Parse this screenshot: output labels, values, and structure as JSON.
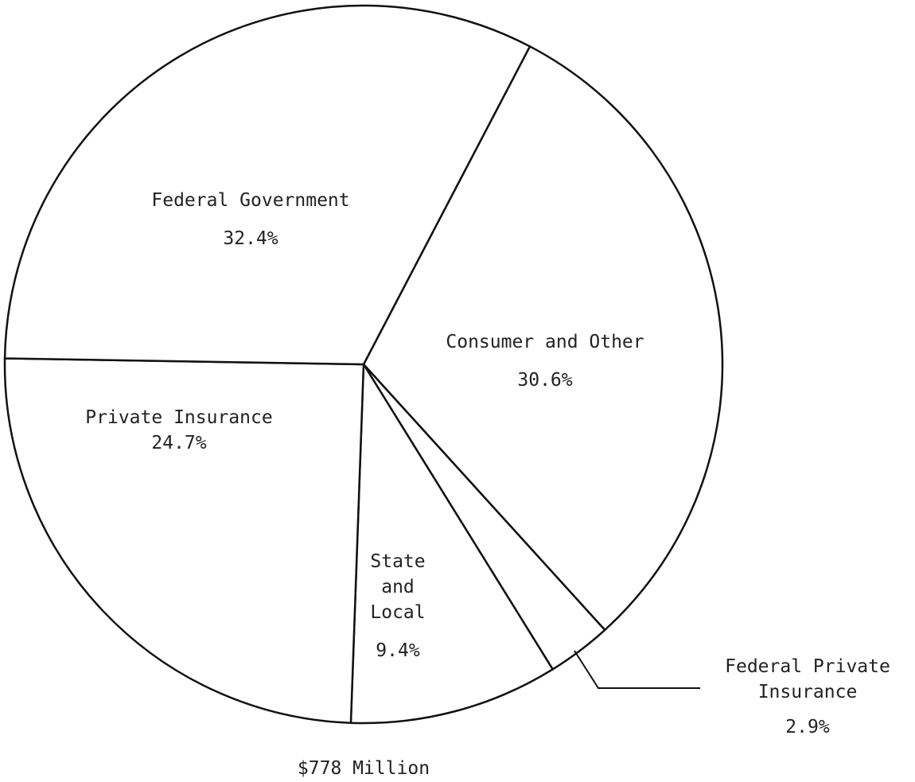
{
  "chart_data": {
    "type": "pie",
    "caption": "$778 Million",
    "categories": [
      "Consumer and Other",
      "Federal Private Insurance",
      "State and Local",
      "Private Insurance",
      "Federal Government"
    ],
    "values": [
      30.6,
      2.9,
      9.4,
      24.7,
      32.4
    ],
    "value_labels": [
      "30.6%",
      "2.9%",
      "9.4%",
      "24.7%",
      "32.4%"
    ],
    "color": "#ffffff"
  }
}
